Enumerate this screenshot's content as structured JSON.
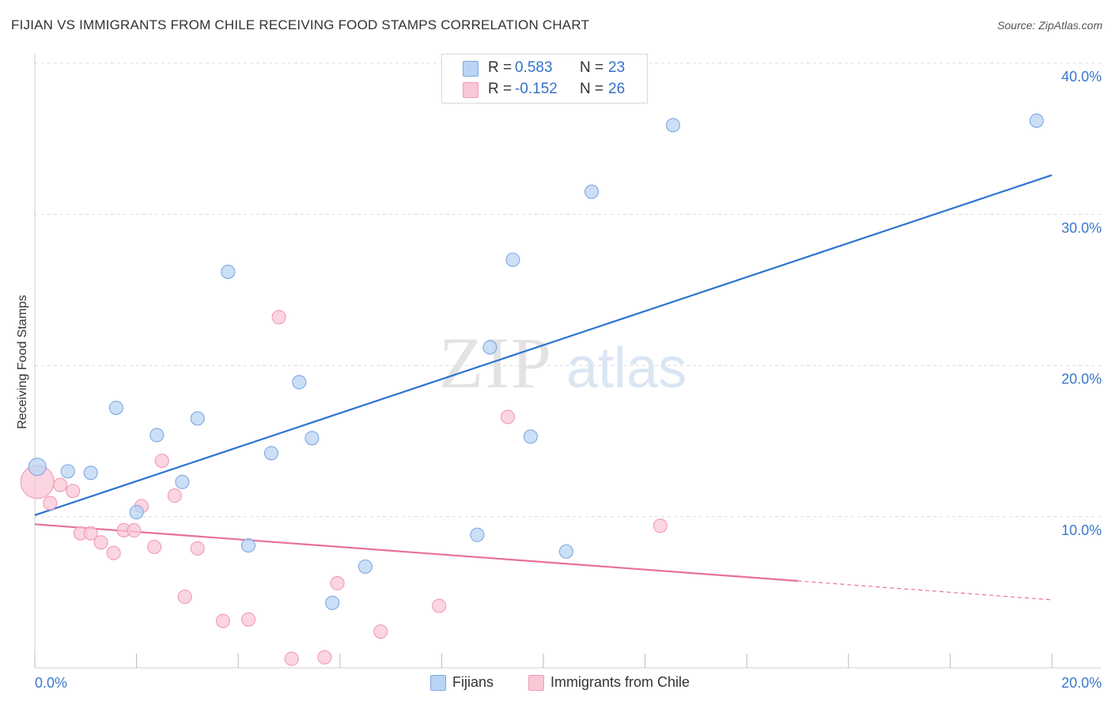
{
  "title": "FIJIAN VS IMMIGRANTS FROM CHILE RECEIVING FOOD STAMPS CORRELATION CHART",
  "source": "Source: ZipAtlas.com",
  "watermark": {
    "zip": "ZIP",
    "atlas": "atlas"
  },
  "legend_top": {
    "rows": [
      {
        "r_label": "R =",
        "r_value": "0.583",
        "n_label": "N =",
        "n_value": "23"
      },
      {
        "r_label": "R =",
        "r_value": "-0.152",
        "n_label": "N =",
        "n_value": "26"
      }
    ]
  },
  "legend_bottom": {
    "series1": "Fijians",
    "series2": "Immigrants from Chile"
  },
  "colors": {
    "blue_fill": "#b9d4f4",
    "blue_stroke": "#7ea8e0",
    "blue_line": "#2f72d0",
    "pink_fill": "#f9c7d5",
    "pink_stroke": "#ef9bb3",
    "pink_line": "#e8709a",
    "tick_label": "#3a78cc"
  },
  "chart_data": {
    "type": "scatter",
    "ylabel": "Receiving Food Stamps",
    "xlabel": "",
    "xlim": [
      0,
      20
    ],
    "ylim": [
      0,
      40
    ],
    "x_tick_labels": [
      {
        "value": 0,
        "label": "0.0%"
      },
      {
        "value": 20,
        "label": "20.0%"
      }
    ],
    "y_tick_labels": [
      {
        "value": 10,
        "label": "10.0%"
      },
      {
        "value": 20,
        "label": "20.0%"
      },
      {
        "value": 30,
        "label": "30.0%"
      },
      {
        "value": 40,
        "label": "40.0%"
      }
    ],
    "grid": "horizontal dashed",
    "legend_position": "top-center",
    "series": [
      {
        "name": "Fijians",
        "r": 0.583,
        "n": 23,
        "points": [
          {
            "x": 0.05,
            "y": 13.3,
            "size": "large"
          },
          {
            "x": 0.65,
            "y": 13.0
          },
          {
            "x": 1.1,
            "y": 12.9
          },
          {
            "x": 1.6,
            "y": 17.2
          },
          {
            "x": 2.0,
            "y": 10.3
          },
          {
            "x": 2.4,
            "y": 15.4
          },
          {
            "x": 2.9,
            "y": 12.3
          },
          {
            "x": 3.2,
            "y": 16.5
          },
          {
            "x": 3.8,
            "y": 26.2
          },
          {
            "x": 4.2,
            "y": 8.1
          },
          {
            "x": 4.65,
            "y": 14.2
          },
          {
            "x": 5.2,
            "y": 18.9
          },
          {
            "x": 5.45,
            "y": 15.2
          },
          {
            "x": 5.85,
            "y": 4.3
          },
          {
            "x": 6.5,
            "y": 6.7
          },
          {
            "x": 8.7,
            "y": 8.8
          },
          {
            "x": 8.95,
            "y": 21.2
          },
          {
            "x": 9.4,
            "y": 27.0
          },
          {
            "x": 9.75,
            "y": 15.3
          },
          {
            "x": 10.45,
            "y": 7.7
          },
          {
            "x": 10.95,
            "y": 31.5
          },
          {
            "x": 12.55,
            "y": 35.9
          },
          {
            "x": 19.7,
            "y": 36.2
          }
        ],
        "trendline": {
          "x": [
            0,
            20
          ],
          "y": [
            10.1,
            32.6
          ]
        }
      },
      {
        "name": "Immigrants from Chile",
        "r": -0.152,
        "n": 26,
        "points": [
          {
            "x": 0.05,
            "y": 12.3,
            "size": "large"
          },
          {
            "x": 0.3,
            "y": 10.9
          },
          {
            "x": 0.5,
            "y": 12.1
          },
          {
            "x": 0.75,
            "y": 11.7
          },
          {
            "x": 0.9,
            "y": 8.9
          },
          {
            "x": 1.1,
            "y": 8.9
          },
          {
            "x": 1.3,
            "y": 8.3
          },
          {
            "x": 1.55,
            "y": 7.6
          },
          {
            "x": 1.75,
            "y": 9.1
          },
          {
            "x": 1.95,
            "y": 9.1
          },
          {
            "x": 2.1,
            "y": 10.7
          },
          {
            "x": 2.35,
            "y": 8.0
          },
          {
            "x": 2.5,
            "y": 13.7
          },
          {
            "x": 2.75,
            "y": 11.4
          },
          {
            "x": 2.95,
            "y": 4.7
          },
          {
            "x": 3.2,
            "y": 7.9
          },
          {
            "x": 3.7,
            "y": 3.1
          },
          {
            "x": 4.2,
            "y": 3.2
          },
          {
            "x": 4.8,
            "y": 23.2
          },
          {
            "x": 5.05,
            "y": 0.6
          },
          {
            "x": 5.7,
            "y": 0.7
          },
          {
            "x": 5.95,
            "y": 5.6
          },
          {
            "x": 6.8,
            "y": 2.4
          },
          {
            "x": 7.95,
            "y": 4.1
          },
          {
            "x": 9.3,
            "y": 16.6
          },
          {
            "x": 12.3,
            "y": 9.4
          }
        ],
        "trendline": {
          "x": [
            0,
            20
          ],
          "y": [
            9.5,
            4.5
          ],
          "solid_until_x": 15.0
        }
      }
    ]
  }
}
